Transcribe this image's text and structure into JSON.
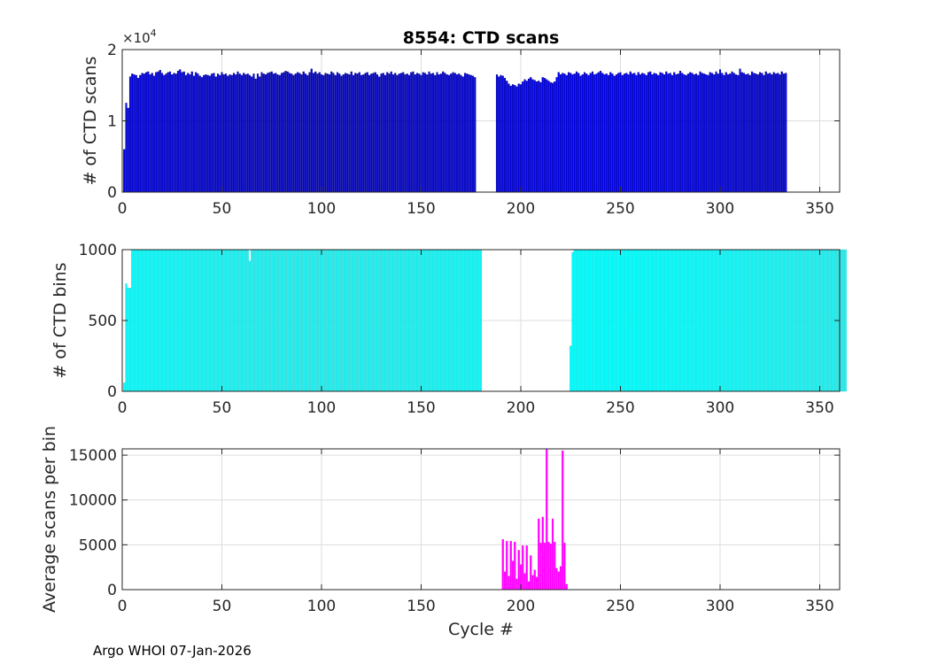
{
  "figure": {
    "title": "8554: CTD scans",
    "footer": "Argo WHOI 07-Jan-2026"
  },
  "colors": {
    "scans": "#0000ee",
    "scans_edge": "#000055",
    "bins": "#00ffff",
    "bins_edge": "#33bbbb",
    "avg": "#ff00ff",
    "grid": "#dcdcdc",
    "axis": "#262626"
  },
  "chart_data": [
    {
      "type": "bar",
      "name": "scans-panel",
      "ylabel": "# of CTD scans",
      "xlabel": "",
      "xlim": [
        0,
        360
      ],
      "ylim": [
        0,
        20000
      ],
      "exponent_label": "×10",
      "exponent": "4",
      "x_ticks": [
        0,
        50,
        100,
        150,
        200,
        250,
        300,
        350
      ],
      "y_ticks": [
        0,
        10000,
        20000
      ],
      "y_tick_labels": [
        "0",
        "1",
        "2"
      ],
      "grid": true,
      "description_x": "cycle number 1..359",
      "values": [
        6000,
        12500,
        11800,
        16200,
        16600,
        16500,
        16400,
        16000,
        16400,
        16700,
        16600,
        16800,
        16900,
        16500,
        16700,
        16300,
        16800,
        16900,
        17100,
        16700,
        16400,
        16600,
        16800,
        16900,
        16500,
        16700,
        16600,
        17000,
        17200,
        16800,
        16900,
        16400,
        16700,
        16500,
        16900,
        16300,
        16800,
        16600,
        16300,
        16100,
        16400,
        16500,
        16400,
        16300,
        16600,
        16700,
        16200,
        16600,
        16400,
        16800,
        16500,
        16600,
        16300,
        16500,
        16400,
        16700,
        16500,
        16900,
        16600,
        16400,
        16700,
        16500,
        16600,
        16400,
        16200,
        16600,
        15900,
        16600,
        16200,
        16800,
        16600,
        16500,
        16700,
        16800,
        16900,
        16600,
        16700,
        16500,
        16400,
        16700,
        16800,
        17000,
        16900,
        16700,
        16600,
        16400,
        16600,
        16800,
        16700,
        16500,
        16900,
        16600,
        16400,
        16800,
        17300,
        16700,
        16900,
        16600,
        16800,
        16500,
        16400,
        16700,
        16600,
        16500,
        16900,
        16700,
        16400,
        16800,
        16600,
        16300,
        16500,
        16700,
        16600,
        16500,
        16900,
        16400,
        16700,
        16600,
        16800,
        16400,
        16500,
        16700,
        16800,
        16400,
        16600,
        16700,
        16800,
        16500,
        16200,
        16600,
        16700,
        16400,
        16800,
        16600,
        16900,
        16500,
        16700,
        16400,
        16600,
        16700,
        16800,
        16500,
        16600,
        16400,
        16800,
        16900,
        16500,
        16700,
        16600,
        16400,
        16800,
        16700,
        16500,
        16900,
        16600,
        16700,
        16400,
        16800,
        16500,
        16600,
        16900,
        16700,
        16500,
        16400,
        16600,
        16800,
        16700,
        16500,
        16600,
        16400,
        16200,
        16700,
        16600,
        16500,
        16400,
        16300,
        16100,
        null,
        null,
        null,
        null,
        null,
        null,
        null,
        null,
        null,
        null,
        16500,
        16200,
        16400,
        16300,
        16000,
        15600,
        15200,
        14900,
        15100,
        15000,
        14800,
        15200,
        15100,
        15500,
        15800,
        15600,
        15900,
        16100,
        15800,
        15700,
        15500,
        15600,
        15400,
        16100,
        16000,
        15800,
        15600,
        15400,
        15300,
        15500,
        16100,
        16800,
        16500,
        16700,
        16600,
        16400,
        16800,
        16700,
        16500,
        16600,
        16900,
        16700,
        16300,
        16500,
        16800,
        16600,
        16400,
        16700,
        16900,
        16500,
        16600,
        16800,
        17000,
        16700,
        16500,
        16600,
        16400,
        16800,
        16600,
        16300,
        16500,
        16700,
        16800,
        16400,
        16600,
        16700,
        16500,
        16900,
        16600,
        16700,
        16400,
        16800,
        16500,
        16700,
        16600,
        16400,
        16800,
        16900,
        16500,
        16700,
        16600,
        16400,
        16800,
        16700,
        16500,
        16900,
        16600,
        16700,
        16400,
        16800,
        16500,
        16600,
        17000,
        16700,
        16500,
        16400,
        16600,
        16800,
        16700,
        16500,
        16600,
        16400,
        16900,
        16700,
        16600,
        16500,
        16400,
        16800,
        16700,
        16500,
        16900,
        16600,
        17200,
        16700,
        16400,
        16800,
        16500,
        16600,
        16900,
        16700,
        16500,
        16400,
        17300,
        16800,
        16700,
        16500,
        16600,
        16400,
        16900,
        16700,
        16600,
        16500,
        16800,
        16700,
        16400,
        16900,
        16600,
        16700,
        16500,
        16800,
        16600,
        16700,
        16500,
        16900,
        16600,
        16700
      ]
    },
    {
      "type": "bar",
      "name": "bins-panel",
      "ylabel": "# of CTD bins",
      "xlabel": "",
      "xlim": [
        0,
        360
      ],
      "ylim": [
        0,
        1000
      ],
      "x_ticks": [
        0,
        50,
        100,
        150,
        200,
        250,
        300,
        350
      ],
      "y_ticks": [
        0,
        500,
        1000
      ],
      "y_tick_labels": [
        "0",
        "500",
        "1000"
      ],
      "grid": true,
      "values": [
        60,
        760,
        730,
        730,
        1000,
        1000,
        1000,
        1000,
        1000,
        1000,
        1000,
        1000,
        1000,
        1000,
        1000,
        1000,
        1000,
        1000,
        1000,
        1000,
        1000,
        1000,
        1000,
        1000,
        1000,
        1000,
        1000,
        1000,
        1000,
        1000,
        1000,
        1000,
        1000,
        1000,
        1000,
        1000,
        1000,
        1000,
        1000,
        1000,
        1000,
        1000,
        1000,
        1000,
        1000,
        1000,
        1000,
        1000,
        1000,
        1000,
        1000,
        1000,
        1000,
        1000,
        1000,
        1000,
        1000,
        1000,
        1000,
        1000,
        1000,
        1000,
        1000,
        920,
        1000,
        1000,
        1000,
        1000,
        1000,
        1000,
        1000,
        1000,
        1000,
        1000,
        1000,
        1000,
        1000,
        1000,
        1000,
        1000,
        1000,
        1000,
        1000,
        1000,
        1000,
        1000,
        1000,
        1000,
        1000,
        1000,
        1000,
        1000,
        1000,
        1000,
        1000,
        1000,
        1000,
        1000,
        1000,
        1000,
        1000,
        1000,
        1000,
        1000,
        1000,
        1000,
        1000,
        1000,
        1000,
        1000,
        1000,
        1000,
        1000,
        1000,
        1000,
        1000,
        1000,
        1000,
        1000,
        1000,
        1000,
        1000,
        1000,
        1000,
        1000,
        1000,
        1000,
        1000,
        1000,
        1000,
        1000,
        1000,
        1000,
        1000,
        1000,
        1000,
        1000,
        1000,
        1000,
        1000,
        1000,
        1000,
        1000,
        1000,
        1000,
        1000,
        1000,
        1000,
        1000,
        1000,
        1000,
        1000,
        1000,
        1000,
        1000,
        1000,
        1000,
        1000,
        1000,
        1000,
        1000,
        1000,
        1000,
        1000,
        1000,
        1000,
        1000,
        1000,
        1000,
        1000,
        1000,
        1000,
        1000,
        1000,
        1000,
        1000,
        1000,
        1000,
        1000,
        1000,
        null,
        null,
        null,
        null,
        null,
        null,
        null,
        null,
        null,
        null,
        null,
        null,
        null,
        null,
        null,
        null,
        null,
        null,
        null,
        null,
        null,
        null,
        null,
        null,
        null,
        null,
        null,
        null,
        null,
        null,
        null,
        null,
        null,
        null,
        null,
        null,
        null,
        null,
        null,
        null,
        null,
        null,
        null,
        null,
        320,
        980,
        1000,
        1000,
        1000,
        1000,
        1000,
        1000,
        1000,
        1000,
        1000,
        1000,
        1000,
        1000,
        1000,
        1000,
        1000,
        1000,
        1000,
        1000,
        1000,
        1000,
        1000,
        1000,
        1000,
        1000,
        1000,
        1000,
        1000,
        1000,
        1000,
        1000,
        1000,
        1000,
        1000,
        1000,
        1000,
        1000,
        1000,
        1000,
        1000,
        1000,
        1000,
        1000,
        1000,
        1000,
        1000,
        1000,
        1000,
        1000,
        1000,
        1000,
        1000,
        1000,
        1000,
        1000,
        1000,
        1000,
        1000,
        1000,
        1000,
        1000,
        1000,
        1000,
        1000,
        1000,
        1000,
        1000,
        1000,
        1000,
        1000,
        1000,
        1000,
        1000,
        1000,
        1000,
        1000,
        1000,
        1000,
        1000,
        1000,
        1000,
        1000,
        1000,
        1000,
        1000,
        1000,
        1000,
        1000,
        1000,
        1000,
        1000,
        1000,
        1000,
        1000,
        1000,
        1000,
        1000,
        1000,
        1000,
        1000,
        1000,
        1000,
        1000,
        1000,
        1000,
        1000,
        1000,
        1000,
        1000,
        1000,
        1000,
        1000,
        1000,
        1000,
        1000,
        1000,
        1000,
        1000,
        1000,
        1000,
        1000,
        1000,
        1000,
        1000,
        1000,
        1000,
        1000,
        1000,
        1000,
        1000,
        1000,
        1000,
        1000,
        1000,
        1000,
        1000,
        1000,
        1000
      ]
    },
    {
      "type": "bar",
      "name": "avg-panel",
      "ylabel": "Average scans per bin",
      "xlabel": "Cycle #",
      "xlim": [
        0,
        360
      ],
      "ylim": [
        0,
        15700
      ],
      "x_ticks": [
        0,
        50,
        100,
        150,
        200,
        250,
        300,
        350
      ],
      "y_ticks": [
        0,
        5000,
        10000,
        15000
      ],
      "y_tick_labels": [
        "0",
        "5000",
        "10000",
        "15000"
      ],
      "grid": true,
      "start_cycle": 191,
      "values": [
        5600,
        2000,
        5400,
        1500,
        5400,
        3200,
        5300,
        1200,
        4400,
        2800,
        4900,
        1800,
        4900,
        900,
        3800,
        1600,
        2200,
        1400,
        7900,
        5200,
        8100,
        5200,
        15700,
        5300,
        5100,
        7900,
        5300,
        2400,
        2000,
        2600,
        15500,
        5200,
        600
      ]
    }
  ]
}
